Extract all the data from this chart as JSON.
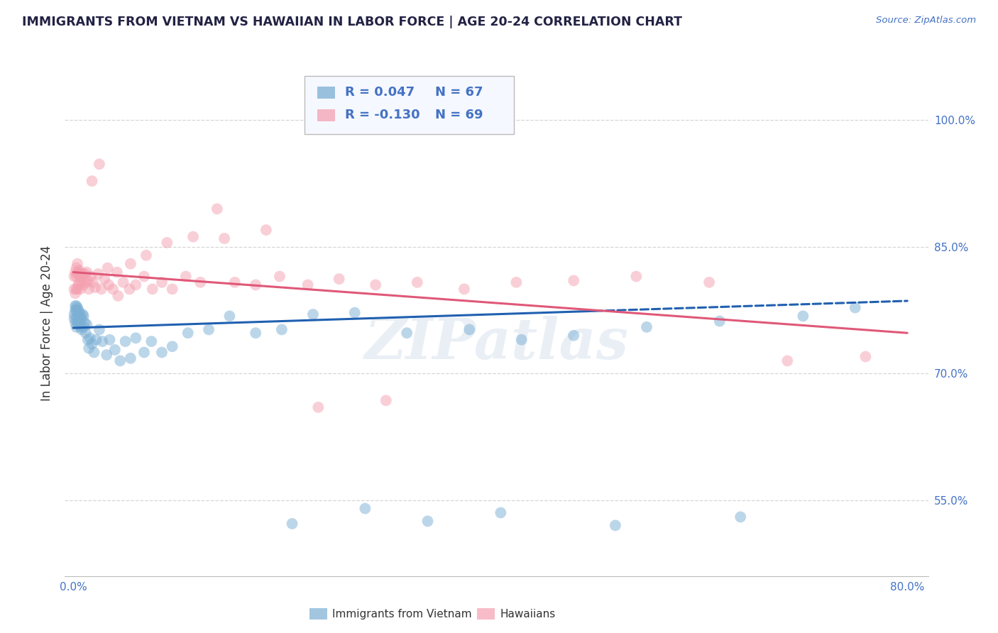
{
  "title": "IMMIGRANTS FROM VIETNAM VS HAWAIIAN IN LABOR FORCE | AGE 20-24 CORRELATION CHART",
  "source": "Source: ZipAtlas.com",
  "ylabel": "In Labor Force | Age 20-24",
  "xlim": [
    -0.008,
    0.82
  ],
  "ylim": [
    0.46,
    1.06
  ],
  "xticks": [
    0.0,
    0.1,
    0.2,
    0.3,
    0.4,
    0.5,
    0.6,
    0.7,
    0.8
  ],
  "xticklabels": [
    "0.0%",
    "",
    "",
    "",
    "",
    "",
    "",
    "",
    "80.0%"
  ],
  "ytick_positions": [
    0.55,
    0.7,
    0.85,
    1.0
  ],
  "ytick_labels": [
    "55.0%",
    "70.0%",
    "85.0%",
    "100.0%"
  ],
  "vietnam_color": "#7bafd4",
  "hawaii_color": "#f4a0b0",
  "vietnam_line_color": "#2060b0",
  "hawaii_line_color": "#e05878",
  "vietnam_R": 0.047,
  "vietnam_N": 67,
  "hawaii_R": -0.13,
  "hawaii_N": 69,
  "legend_labels": [
    "Immigrants from Vietnam",
    "Hawaiians"
  ],
  "vietnam_points_x": [
    0.001,
    0.001,
    0.002,
    0.002,
    0.002,
    0.003,
    0.003,
    0.003,
    0.003,
    0.004,
    0.004,
    0.004,
    0.005,
    0.005,
    0.005,
    0.006,
    0.006,
    0.007,
    0.007,
    0.008,
    0.008,
    0.009,
    0.01,
    0.01,
    0.011,
    0.012,
    0.013,
    0.014,
    0.015,
    0.016,
    0.018,
    0.02,
    0.022,
    0.025,
    0.028,
    0.032,
    0.035,
    0.04,
    0.045,
    0.05,
    0.055,
    0.06,
    0.068,
    0.075,
    0.085,
    0.095,
    0.11,
    0.13,
    0.15,
    0.175,
    0.2,
    0.23,
    0.27,
    0.32,
    0.38,
    0.43,
    0.48,
    0.55,
    0.62,
    0.7,
    0.75,
    0.21,
    0.28,
    0.34,
    0.41,
    0.52,
    0.64
  ],
  "vietnam_points_y": [
    0.765,
    0.77,
    0.76,
    0.775,
    0.78,
    0.755,
    0.765,
    0.775,
    0.78,
    0.76,
    0.77,
    0.778,
    0.758,
    0.768,
    0.775,
    0.762,
    0.772,
    0.755,
    0.768,
    0.752,
    0.765,
    0.77,
    0.755,
    0.768,
    0.76,
    0.748,
    0.758,
    0.74,
    0.73,
    0.742,
    0.735,
    0.725,
    0.74,
    0.752,
    0.738,
    0.722,
    0.74,
    0.728,
    0.715,
    0.738,
    0.718,
    0.742,
    0.725,
    0.738,
    0.725,
    0.732,
    0.748,
    0.752,
    0.768,
    0.748,
    0.752,
    0.77,
    0.772,
    0.748,
    0.752,
    0.74,
    0.745,
    0.755,
    0.762,
    0.768,
    0.778,
    0.522,
    0.54,
    0.525,
    0.535,
    0.52,
    0.53
  ],
  "hawaii_points_x": [
    0.001,
    0.001,
    0.002,
    0.002,
    0.003,
    0.003,
    0.003,
    0.004,
    0.004,
    0.004,
    0.005,
    0.005,
    0.006,
    0.006,
    0.007,
    0.007,
    0.008,
    0.009,
    0.01,
    0.011,
    0.012,
    0.013,
    0.014,
    0.015,
    0.017,
    0.019,
    0.021,
    0.024,
    0.027,
    0.03,
    0.034,
    0.038,
    0.043,
    0.048,
    0.054,
    0.06,
    0.068,
    0.076,
    0.085,
    0.095,
    0.108,
    0.122,
    0.138,
    0.155,
    0.175,
    0.198,
    0.225,
    0.255,
    0.29,
    0.33,
    0.375,
    0.425,
    0.48,
    0.54,
    0.61,
    0.685,
    0.76,
    0.018,
    0.025,
    0.033,
    0.042,
    0.055,
    0.07,
    0.09,
    0.115,
    0.145,
    0.185,
    0.235,
    0.3
  ],
  "hawaii_points_y": [
    0.8,
    0.815,
    0.795,
    0.82,
    0.8,
    0.815,
    0.825,
    0.8,
    0.818,
    0.83,
    0.805,
    0.82,
    0.808,
    0.822,
    0.8,
    0.815,
    0.81,
    0.818,
    0.805,
    0.818,
    0.808,
    0.82,
    0.81,
    0.8,
    0.815,
    0.808,
    0.802,
    0.818,
    0.8,
    0.812,
    0.805,
    0.8,
    0.792,
    0.808,
    0.8,
    0.805,
    0.815,
    0.8,
    0.808,
    0.8,
    0.815,
    0.808,
    0.895,
    0.808,
    0.805,
    0.815,
    0.805,
    0.812,
    0.805,
    0.808,
    0.8,
    0.808,
    0.81,
    0.815,
    0.808,
    0.715,
    0.72,
    0.928,
    0.948,
    0.825,
    0.82,
    0.83,
    0.84,
    0.855,
    0.862,
    0.86,
    0.87,
    0.66,
    0.668
  ],
  "vietnam_trend_x0": 0.0,
  "vietnam_trend_y0": 0.754,
  "vietnam_trend_x1_solid": 0.5,
  "vietnam_trend_y1_solid": 0.774,
  "vietnam_trend_x1_dashed": 0.8,
  "vietnam_trend_y1_dashed": 0.786,
  "hawaii_trend_x0": 0.0,
  "hawaii_trend_y0": 0.82,
  "hawaii_trend_x1": 0.8,
  "hawaii_trend_y1": 0.748,
  "title_color": "#222244",
  "axis_label_color": "#4472c4",
  "grid_color": "#cccccc",
  "watermark_text": "ZIPatlas",
  "watermark_color": "#c8d8e8"
}
